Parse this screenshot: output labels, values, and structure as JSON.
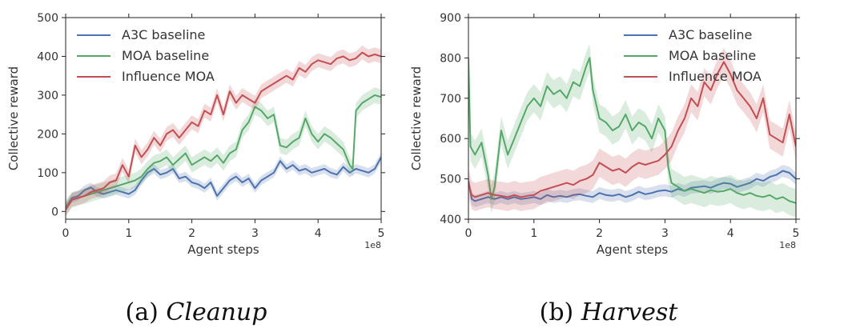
{
  "chart_data": [
    {
      "type": "line",
      "caption_prefix": "(a)",
      "caption_name": "Cleanup",
      "xlabel": "Agent steps",
      "ylabel": "Collective reward",
      "x_multiplier_label": "1e8",
      "xlim": [
        0,
        5
      ],
      "ylim": [
        -20,
        500
      ],
      "xticks": [
        0,
        1,
        2,
        3,
        4,
        5
      ],
      "yticks": [
        0,
        100,
        200,
        300,
        400,
        500
      ],
      "legend_position": "top-left",
      "series": [
        {
          "name": "A3C baseline",
          "color": "#4c72b0",
          "x": [
            0,
            0.1,
            0.2,
            0.3,
            0.4,
            0.5,
            0.6,
            0.7,
            0.8,
            0.9,
            1.0,
            1.1,
            1.2,
            1.3,
            1.4,
            1.5,
            1.6,
            1.7,
            1.8,
            1.9,
            2.0,
            2.1,
            2.2,
            2.3,
            2.4,
            2.5,
            2.6,
            2.7,
            2.8,
            2.9,
            3.0,
            3.1,
            3.2,
            3.3,
            3.4,
            3.5,
            3.6,
            3.7,
            3.8,
            3.9,
            4.0,
            4.1,
            4.2,
            4.3,
            4.4,
            4.5,
            4.6,
            4.7,
            4.8,
            4.9,
            5.0
          ],
          "values": [
            10,
            35,
            40,
            55,
            62,
            50,
            45,
            50,
            55,
            50,
            45,
            55,
            80,
            100,
            110,
            95,
            100,
            110,
            85,
            90,
            75,
            70,
            60,
            75,
            40,
            60,
            80,
            90,
            75,
            85,
            60,
            80,
            90,
            100,
            130,
            110,
            120,
            105,
            110,
            100,
            105,
            110,
            100,
            95,
            115,
            100,
            110,
            105,
            100,
            110,
            140
          ],
          "band": 12
        },
        {
          "name": "MOA baseline",
          "color": "#55a868",
          "x": [
            0,
            0.1,
            0.2,
            0.3,
            0.4,
            0.5,
            0.6,
            0.7,
            0.8,
            0.9,
            1.0,
            1.1,
            1.2,
            1.3,
            1.4,
            1.5,
            1.6,
            1.7,
            1.8,
            1.9,
            2.0,
            2.1,
            2.2,
            2.3,
            2.4,
            2.5,
            2.6,
            2.7,
            2.8,
            2.9,
            3.0,
            3.1,
            3.2,
            3.3,
            3.4,
            3.5,
            3.6,
            3.7,
            3.8,
            3.9,
            4.0,
            4.1,
            4.2,
            4.3,
            4.4,
            4.5,
            4.55,
            4.6,
            4.7,
            4.8,
            4.9,
            5.0
          ],
          "values": [
            10,
            30,
            35,
            40,
            45,
            50,
            55,
            60,
            65,
            70,
            75,
            80,
            90,
            110,
            125,
            130,
            140,
            120,
            135,
            150,
            120,
            130,
            140,
            130,
            145,
            125,
            150,
            160,
            210,
            230,
            270,
            260,
            240,
            250,
            170,
            165,
            180,
            190,
            240,
            200,
            180,
            200,
            190,
            175,
            160,
            120,
            110,
            260,
            280,
            290,
            300,
            295
          ],
          "band": 20
        },
        {
          "name": "Influence MOA",
          "color": "#c44e52",
          "x": [
            0,
            0.1,
            0.2,
            0.3,
            0.4,
            0.5,
            0.6,
            0.7,
            0.8,
            0.9,
            1.0,
            1.1,
            1.2,
            1.3,
            1.4,
            1.5,
            1.6,
            1.7,
            1.8,
            1.9,
            2.0,
            2.1,
            2.2,
            2.3,
            2.4,
            2.5,
            2.6,
            2.7,
            2.8,
            2.9,
            3.0,
            3.1,
            3.2,
            3.3,
            3.4,
            3.5,
            3.6,
            3.7,
            3.8,
            3.9,
            4.0,
            4.1,
            4.2,
            4.3,
            4.4,
            4.5,
            4.6,
            4.7,
            4.8,
            4.9,
            5.0
          ],
          "values": [
            5,
            30,
            35,
            40,
            50,
            55,
            60,
            75,
            80,
            120,
            90,
            170,
            140,
            160,
            190,
            170,
            200,
            210,
            190,
            210,
            230,
            220,
            260,
            250,
            300,
            250,
            310,
            280,
            300,
            290,
            280,
            310,
            320,
            330,
            340,
            350,
            340,
            370,
            360,
            380,
            390,
            385,
            380,
            395,
            400,
            390,
            395,
            410,
            400,
            405,
            400
          ],
          "band": 18
        }
      ]
    },
    {
      "type": "line",
      "caption_prefix": "(b)",
      "caption_name": "Harvest",
      "xlabel": "Agent steps",
      "ylabel": "Collective reward",
      "x_multiplier_label": "1e8",
      "xlim": [
        0,
        5
      ],
      "ylim": [
        400,
        900
      ],
      "xticks": [
        0,
        1,
        2,
        3,
        4,
        5
      ],
      "yticks": [
        400,
        500,
        600,
        700,
        800,
        900
      ],
      "legend_position": "top-right",
      "series": [
        {
          "name": "A3C baseline",
          "color": "#4c72b0",
          "x": [
            0,
            0.05,
            0.1,
            0.2,
            0.3,
            0.4,
            0.5,
            0.6,
            0.7,
            0.8,
            0.9,
            1.0,
            1.1,
            1.2,
            1.3,
            1.4,
            1.5,
            1.6,
            1.7,
            1.8,
            1.9,
            2.0,
            2.1,
            2.2,
            2.3,
            2.4,
            2.5,
            2.6,
            2.7,
            2.8,
            2.9,
            3.0,
            3.1,
            3.2,
            3.3,
            3.4,
            3.5,
            3.6,
            3.7,
            3.8,
            3.9,
            4.0,
            4.1,
            4.2,
            4.3,
            4.4,
            4.5,
            4.6,
            4.7,
            4.8,
            4.9,
            5.0
          ],
          "values": [
            495,
            450,
            445,
            450,
            455,
            450,
            455,
            450,
            455,
            450,
            452,
            455,
            450,
            460,
            455,
            458,
            455,
            460,
            462,
            458,
            455,
            465,
            460,
            458,
            462,
            455,
            460,
            468,
            462,
            465,
            470,
            472,
            468,
            475,
            470,
            478,
            480,
            482,
            478,
            485,
            490,
            488,
            480,
            485,
            490,
            500,
            495,
            505,
            510,
            520,
            515,
            500
          ],
          "band": 15
        },
        {
          "name": "MOA baseline",
          "color": "#55a868",
          "x": [
            0,
            0.03,
            0.1,
            0.2,
            0.3,
            0.35,
            0.4,
            0.5,
            0.6,
            0.7,
            0.8,
            0.9,
            1.0,
            1.1,
            1.2,
            1.3,
            1.4,
            1.5,
            1.6,
            1.7,
            1.8,
            1.85,
            1.9,
            2.0,
            2.1,
            2.2,
            2.3,
            2.4,
            2.5,
            2.6,
            2.7,
            2.8,
            2.9,
            3.0,
            3.05,
            3.1,
            3.2,
            3.3,
            3.4,
            3.5,
            3.6,
            3.7,
            3.8,
            3.9,
            4.0,
            4.1,
            4.2,
            4.3,
            4.4,
            4.5,
            4.6,
            4.7,
            4.8,
            4.9,
            5.0
          ],
          "values": [
            800,
            580,
            560,
            590,
            510,
            450,
            480,
            620,
            560,
            600,
            640,
            680,
            700,
            680,
            730,
            710,
            720,
            700,
            740,
            730,
            780,
            800,
            720,
            650,
            640,
            620,
            630,
            660,
            620,
            640,
            630,
            600,
            650,
            620,
            530,
            490,
            480,
            470,
            475,
            470,
            465,
            472,
            468,
            470,
            475,
            465,
            460,
            465,
            458,
            455,
            460,
            450,
            455,
            445,
            440
          ],
          "band": 35
        },
        {
          "name": "Influence MOA",
          "color": "#c44e52",
          "x": [
            0,
            0.05,
            0.1,
            0.2,
            0.3,
            0.4,
            0.5,
            0.6,
            0.7,
            0.8,
            0.9,
            1.0,
            1.1,
            1.2,
            1.3,
            1.4,
            1.5,
            1.6,
            1.7,
            1.8,
            1.9,
            2.0,
            2.1,
            2.2,
            2.3,
            2.4,
            2.5,
            2.6,
            2.7,
            2.8,
            2.9,
            3.0,
            3.1,
            3.2,
            3.3,
            3.4,
            3.5,
            3.6,
            3.7,
            3.8,
            3.9,
            4.0,
            4.1,
            4.2,
            4.3,
            4.4,
            4.5,
            4.6,
            4.7,
            4.8,
            4.9,
            5.0
          ],
          "values": [
            490,
            460,
            455,
            460,
            465,
            460,
            458,
            455,
            460,
            455,
            458,
            460,
            470,
            475,
            480,
            485,
            490,
            485,
            495,
            500,
            510,
            540,
            530,
            520,
            525,
            515,
            530,
            540,
            535,
            540,
            545,
            560,
            580,
            620,
            650,
            700,
            680,
            740,
            720,
            760,
            790,
            760,
            720,
            700,
            680,
            650,
            700,
            610,
            600,
            590,
            660,
            580
          ],
          "band": 35
        }
      ]
    }
  ]
}
